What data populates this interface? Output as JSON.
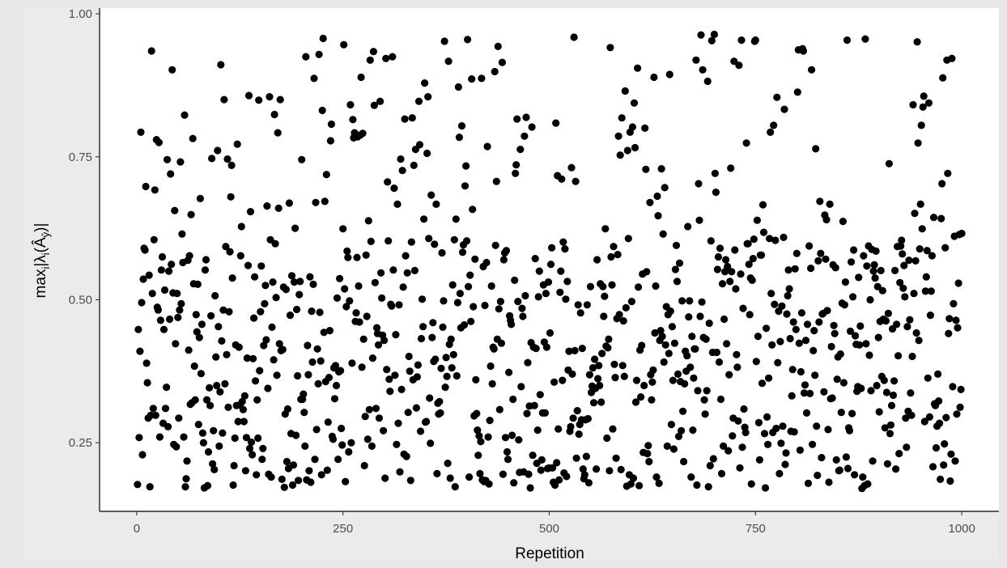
{
  "chart_data": {
    "type": "scatter",
    "title": "",
    "xlabel": "Repetition",
    "ylabel": "max_i|λ_i(Â_ŷ)|",
    "xlim": [
      -45,
      1045
    ],
    "ylim": [
      0.13,
      1.01
    ],
    "x_ticks": [
      0,
      250,
      500,
      750,
      1000
    ],
    "y_ticks": [
      0.25,
      0.5,
      0.75,
      1.0
    ],
    "x_tick_labels": [
      "0",
      "250",
      "500",
      "750",
      "1000"
    ],
    "y_tick_labels": [
      "0.25",
      "0.50",
      "0.75",
      "1.00"
    ],
    "grid": false,
    "point_color": "#000000",
    "panel_background": "#ffffff",
    "plot_background": "#ebebeb",
    "n_points": 1000,
    "random_seed": 12345,
    "value_range": [
      0.17,
      0.965
    ]
  }
}
